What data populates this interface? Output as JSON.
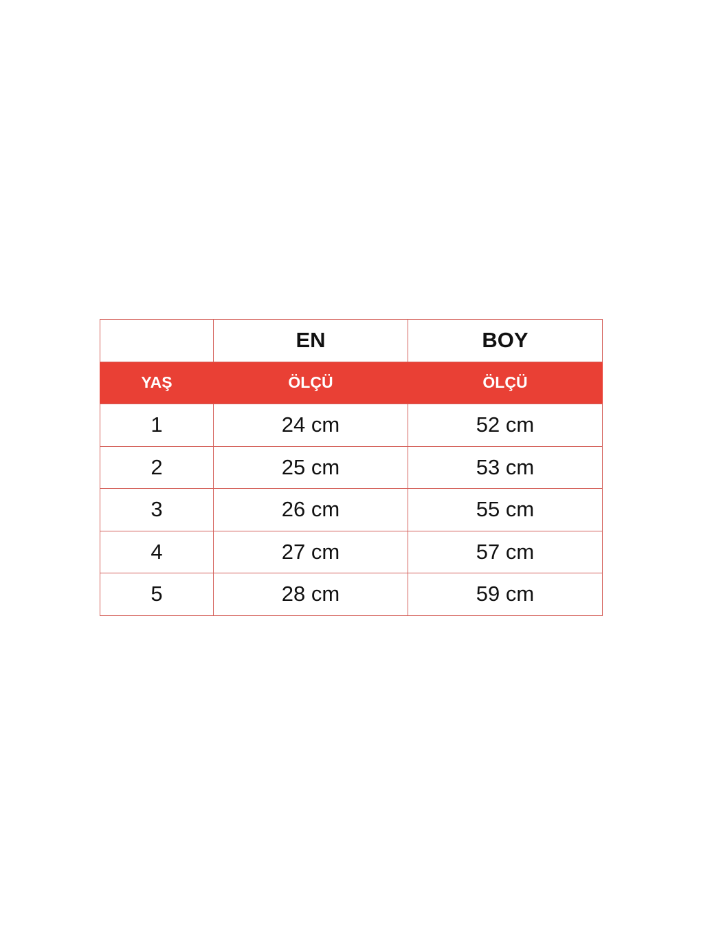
{
  "header": {
    "col1": "",
    "col2": "EN",
    "col3": "BOY"
  },
  "subheader": {
    "col1": "YAŞ",
    "col2": "ÖLÇÜ",
    "col3": "ÖLÇÜ"
  },
  "rows": [
    {
      "age": "1",
      "en": "24 cm",
      "boy": "52 cm"
    },
    {
      "age": "2",
      "en": "25 cm",
      "boy": "53 cm"
    },
    {
      "age": "3",
      "en": "26 cm",
      "boy": "55 cm"
    },
    {
      "age": "4",
      "en": "27 cm",
      "boy": "57 cm"
    },
    {
      "age": "5",
      "en": "28 cm",
      "boy": "59 cm"
    }
  ],
  "colors": {
    "accent": "#e94035",
    "border": "#d4605a"
  }
}
